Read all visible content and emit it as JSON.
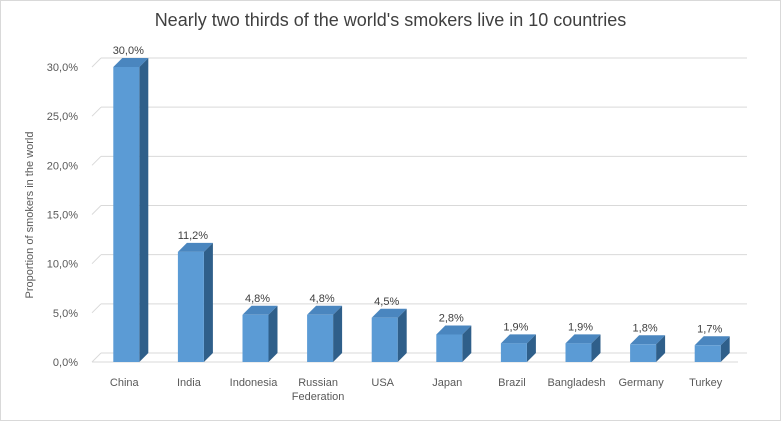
{
  "chart_data": {
    "type": "bar",
    "title": "Nearly two thirds of the world's smokers live in 10 countries",
    "xlabel": "",
    "ylabel": "Proportion of smokers in the  world",
    "categories": [
      "China",
      "India",
      "Indonesia",
      "Russian Federation",
      "USA",
      "Japan",
      "Brazil",
      "Bangladesh",
      "Germany",
      "Turkey"
    ],
    "values": [
      30.0,
      11.2,
      4.8,
      4.8,
      4.5,
      2.8,
      1.9,
      1.9,
      1.8,
      1.7
    ],
    "data_labels": [
      "30,0%",
      "11,2%",
      "4,8%",
      "4,8%",
      "4,5%",
      "2,8%",
      "1,9%",
      "1,9%",
      "1,8%",
      "1,7%"
    ],
    "ylim": [
      0,
      30
    ],
    "yticks": [
      0,
      5,
      10,
      15,
      20,
      25,
      30
    ],
    "ytick_labels": [
      "0,0%",
      "5,0%",
      "10,0%",
      "15,0%",
      "20,0%",
      "25,0%",
      "30,0%"
    ],
    "grid": true,
    "legend": "none",
    "colors": {
      "bar_front": "#5b9bd5",
      "bar_side": "#2f5f8a",
      "bar_top": "#4a86bf",
      "grid": "#d9d9d9"
    }
  }
}
